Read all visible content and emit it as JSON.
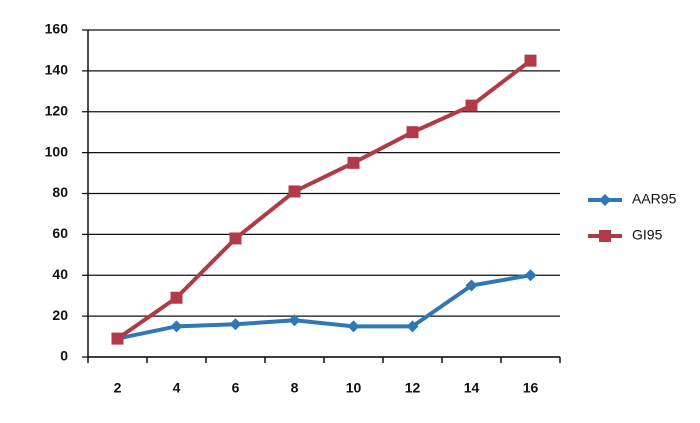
{
  "chart_data": {
    "type": "line",
    "categories": [
      "2",
      "4",
      "6",
      "8",
      "10",
      "12",
      "14",
      "16"
    ],
    "series": [
      {
        "name": "AAR95",
        "color": "#2f78b4",
        "marker": "diamond",
        "values": [
          9,
          15,
          16,
          18,
          15,
          15,
          35,
          40
        ]
      },
      {
        "name": "GI95",
        "color": "#b13a48",
        "marker": "square",
        "values": [
          9,
          29,
          58,
          81,
          95,
          110,
          123,
          145
        ]
      }
    ],
    "ylim": [
      0,
      160
    ],
    "yticks": [
      0,
      20,
      40,
      60,
      80,
      100,
      120,
      140,
      160
    ],
    "grid": true,
    "legend": "right"
  }
}
